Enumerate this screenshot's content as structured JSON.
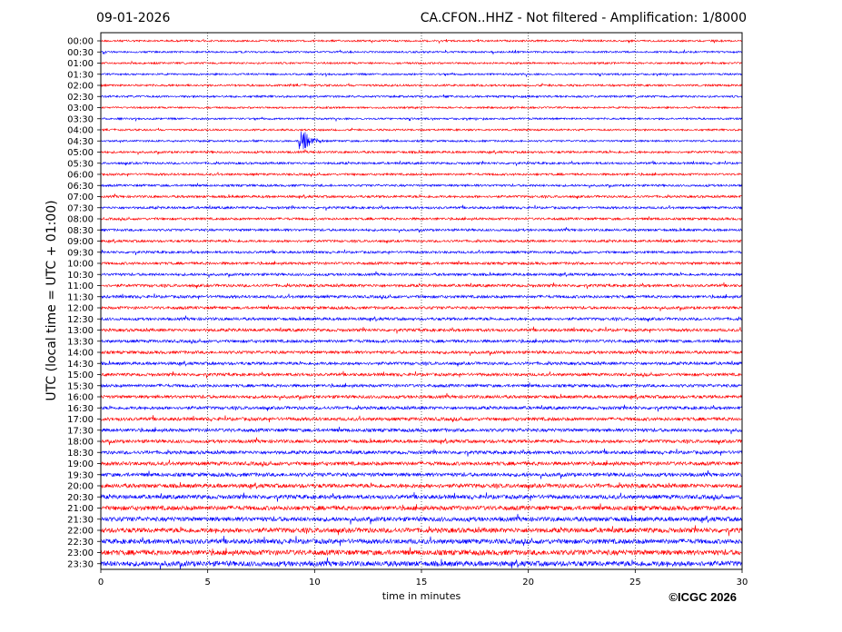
{
  "header": {
    "date": "09-01-2026",
    "title": "CA.CFON..HHZ - Not filtered - Amplification: 1/8000"
  },
  "footer": {
    "credit": "©ICGC 2026"
  },
  "chart_data": {
    "type": "line",
    "xlabel": "time in minutes",
    "ylabel": "UTC (local time = UTC + 01:00)",
    "xlim": [
      0,
      30
    ],
    "xticks": [
      0,
      5,
      10,
      15,
      20,
      25,
      30
    ],
    "rows": [
      "00:00",
      "00:30",
      "01:00",
      "01:30",
      "02:00",
      "02:30",
      "03:00",
      "03:30",
      "04:00",
      "04:30",
      "05:00",
      "05:30",
      "06:00",
      "06:30",
      "07:00",
      "07:30",
      "08:00",
      "08:30",
      "09:00",
      "09:30",
      "10:00",
      "10:30",
      "11:00",
      "11:30",
      "12:00",
      "12:30",
      "13:00",
      "13:30",
      "14:00",
      "14:30",
      "15:00",
      "15:30",
      "16:00",
      "16:30",
      "17:00",
      "17:30",
      "18:00",
      "18:30",
      "19:00",
      "19:30",
      "20:00",
      "20:30",
      "21:00",
      "21:30",
      "22:00",
      "22:30",
      "23:00",
      "23:30"
    ],
    "trace_colors": [
      "#ff0000",
      "#0000ff"
    ],
    "noise_level": [
      0.25,
      0.25,
      0.25,
      0.25,
      0.28,
      0.28,
      0.25,
      0.25,
      0.25,
      0.25,
      0.3,
      0.3,
      0.3,
      0.3,
      0.32,
      0.32,
      0.32,
      0.32,
      0.32,
      0.32,
      0.35,
      0.35,
      0.38,
      0.38,
      0.38,
      0.38,
      0.4,
      0.4,
      0.4,
      0.4,
      0.4,
      0.4,
      0.42,
      0.42,
      0.45,
      0.45,
      0.45,
      0.45,
      0.5,
      0.5,
      0.55,
      0.55,
      0.6,
      0.6,
      0.65,
      0.65,
      0.7,
      0.7
    ],
    "events": [
      {
        "row": "04:30",
        "minute": 9.3,
        "amplitude": 3.6
      }
    ],
    "grid": "vertical-dotted"
  }
}
